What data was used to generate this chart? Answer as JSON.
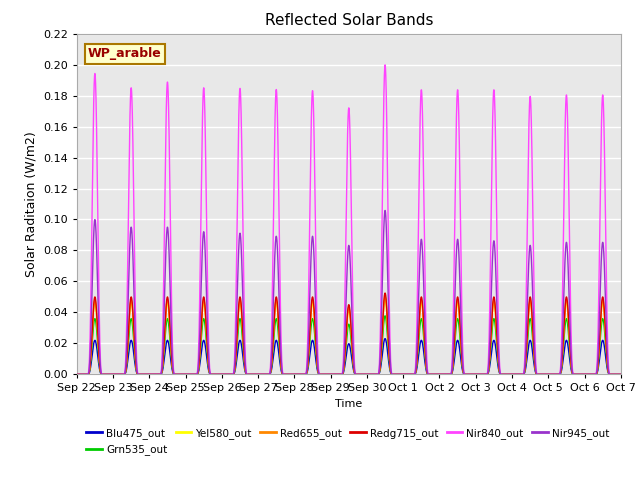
{
  "title": "Reflected Solar Bands",
  "xlabel": "Time",
  "ylabel": "Solar Raditaion (W/m2)",
  "annotation": "WP_arable",
  "annotation_bg": "#ffffcc",
  "annotation_border": "#aa7700",
  "annotation_text_color": "#990000",
  "ylim": [
    0.0,
    0.22
  ],
  "yticks": [
    0.0,
    0.02,
    0.04,
    0.06,
    0.08,
    0.1,
    0.12,
    0.14,
    0.16,
    0.18,
    0.2,
    0.22
  ],
  "background_color": "#e8e8e8",
  "grid_color": "#ffffff",
  "lines": [
    {
      "label": "Blu475_out",
      "color": "#0000cc",
      "peak": 0.022,
      "lw": 1.0
    },
    {
      "label": "Grn535_out",
      "color": "#00cc00",
      "peak": 0.036,
      "lw": 1.0
    },
    {
      "label": "Yel580_out",
      "color": "#ffff00",
      "peak": 0.046,
      "lw": 1.0
    },
    {
      "label": "Red655_out",
      "color": "#ff8800",
      "peak": 0.048,
      "lw": 1.0
    },
    {
      "label": "Redg715_out",
      "color": "#dd0000",
      "peak": 0.05,
      "lw": 1.0
    },
    {
      "label": "Nir840_out",
      "color": "#ff44ff",
      "peak": 0.185,
      "lw": 1.0
    },
    {
      "label": "Nir945_out",
      "color": "#9933cc",
      "peak": 0.098,
      "lw": 1.0
    }
  ],
  "n_days": 15,
  "xtick_labels": [
    "Sep 22",
    "Sep 23",
    "Sep 24",
    "Sep 25",
    "Sep 26",
    "Sep 27",
    "Sep 28",
    "Sep 29",
    "Sep 30",
    "Oct 1",
    "Oct 2",
    "Oct 3",
    "Oct 4",
    "Oct 5",
    "Oct 6",
    "Oct 7"
  ],
  "day_peaks_nir840": [
    1.05,
    1.0,
    1.02,
    1.0,
    0.998,
    0.994,
    0.99,
    0.93,
    1.08,
    0.993,
    0.993,
    0.993,
    0.97,
    0.975,
    0.975
  ],
  "day_peaks_nir945": [
    1.02,
    0.97,
    0.97,
    0.94,
    0.93,
    0.91,
    0.91,
    0.85,
    1.08,
    0.89,
    0.89,
    0.88,
    0.85,
    0.87,
    0.87
  ],
  "day_peaks_other": [
    1.0,
    1.0,
    1.0,
    1.0,
    1.0,
    1.0,
    1.0,
    0.9,
    1.05,
    1.0,
    1.0,
    1.0,
    1.0,
    1.0,
    1.0
  ],
  "pulse_lo": 0.3,
  "pulse_hi": 0.7,
  "pulse_power": 3.0
}
